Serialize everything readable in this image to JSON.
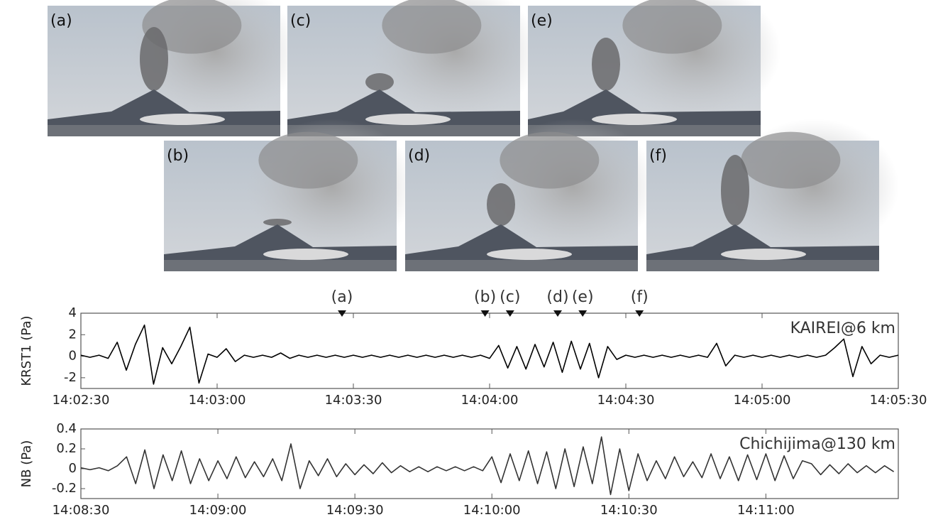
{
  "photos": [
    {
      "label": "(a)"
    },
    {
      "label": "(c)"
    },
    {
      "label": "(e)"
    },
    {
      "label": "(b)"
    },
    {
      "label": "(d)"
    },
    {
      "label": "(f)"
    }
  ],
  "chart_data": [
    {
      "type": "line",
      "ylabel": "KRST1 (Pa)",
      "annotation": "KAIREI@6 km",
      "color": "#000000",
      "xlim": [
        50550,
        50730
      ],
      "ylim": [
        -3,
        4
      ],
      "xticks": [
        {
          "value": 50550,
          "label": "14:02:30"
        },
        {
          "value": 50580,
          "label": "14:03:00"
        },
        {
          "value": 50610,
          "label": "14:03:30"
        },
        {
          "value": 50640,
          "label": "14:04:00"
        },
        {
          "value": 50670,
          "label": "14:04:30"
        },
        {
          "value": 50700,
          "label": "14:05:00"
        },
        {
          "value": 50730,
          "label": "14:05:30"
        }
      ],
      "yticks": [
        -2,
        0,
        2,
        4
      ],
      "events": [
        {
          "label": "(a)",
          "x": 50607.5
        },
        {
          "label": "(b)",
          "x": 50639
        },
        {
          "label": "(c)",
          "x": 50644.5
        },
        {
          "label": "(d)",
          "x": 50655
        },
        {
          "label": "(e)",
          "x": 50660.5
        },
        {
          "label": "(f)",
          "x": 50673
        }
      ],
      "x": [
        50550,
        50552,
        50554,
        50556,
        50558,
        50560,
        50562,
        50564,
        50566,
        50568,
        50570,
        50572,
        50574,
        50576,
        50578,
        50580,
        50582,
        50584,
        50586,
        50588,
        50590,
        50592,
        50594,
        50596,
        50598,
        50600,
        50602,
        50604,
        50606,
        50608,
        50610,
        50612,
        50614,
        50616,
        50618,
        50620,
        50622,
        50624,
        50626,
        50628,
        50630,
        50632,
        50634,
        50636,
        50638,
        50640,
        50642,
        50644,
        50646,
        50648,
        50650,
        50652,
        50654,
        50656,
        50658,
        50660,
        50662,
        50664,
        50666,
        50668,
        50670,
        50672,
        50674,
        50676,
        50678,
        50680,
        50682,
        50684,
        50686,
        50688,
        50690,
        50692,
        50694,
        50696,
        50698,
        50700,
        50702,
        50704,
        50706,
        50708,
        50710,
        50712,
        50714,
        50716,
        50718,
        50720,
        50722,
        50724,
        50726,
        50728,
        50730
      ],
      "values": [
        0.1,
        -0.1,
        0.1,
        -0.2,
        1.3,
        -1.3,
        1.1,
        2.9,
        -2.6,
        0.8,
        -0.7,
        0.9,
        2.7,
        -2.5,
        0.2,
        -0.1,
        0.7,
        -0.5,
        0.1,
        -0.1,
        0.1,
        -0.1,
        0.3,
        -0.2,
        0.1,
        -0.1,
        0.1,
        -0.1,
        0.1,
        -0.1,
        0.1,
        -0.1,
        0.1,
        -0.1,
        0.1,
        -0.1,
        0.1,
        -0.1,
        0.1,
        -0.1,
        0.1,
        -0.1,
        0.1,
        -0.1,
        0.1,
        -0.2,
        1.0,
        -1.1,
        0.9,
        -1.2,
        1.1,
        -1.0,
        1.3,
        -1.5,
        1.4,
        -1.2,
        1.2,
        -2.0,
        0.9,
        -0.3,
        0.1,
        -0.1,
        0.1,
        -0.1,
        0.1,
        -0.1,
        0.1,
        -0.1,
        0.1,
        -0.1,
        1.2,
        -0.9,
        0.1,
        -0.1,
        0.1,
        -0.1,
        0.1,
        -0.1,
        0.1,
        -0.1,
        0.1,
        -0.1,
        0.1,
        0.8,
        1.6,
        -1.9,
        0.9,
        -0.7,
        0.1,
        -0.1,
        0.1
      ]
    },
    {
      "type": "line",
      "ylabel": "NB (Pa)",
      "annotation": "Chichijima@130 km",
      "color": "#333333",
      "xlim": [
        50910,
        51089
      ],
      "ylim": [
        -0.3,
        0.4
      ],
      "xticks": [
        {
          "value": 50910,
          "label": "14:08:30"
        },
        {
          "value": 50940,
          "label": "14:09:00"
        },
        {
          "value": 50970,
          "label": "14:09:30"
        },
        {
          "value": 51000,
          "label": "14:10:00"
        },
        {
          "value": 51030,
          "label": "14:10:30"
        },
        {
          "value": 51060,
          "label": "14:11:00"
        }
      ],
      "yticks": [
        -0.2,
        0,
        0.2,
        0.4
      ],
      "x": [
        50910,
        50912,
        50914,
        50916,
        50918,
        50920,
        50922,
        50924,
        50926,
        50928,
        50930,
        50932,
        50934,
        50936,
        50938,
        50940,
        50942,
        50944,
        50946,
        50948,
        50950,
        50952,
        50954,
        50956,
        50958,
        50960,
        50962,
        50964,
        50966,
        50968,
        50970,
        50972,
        50974,
        50976,
        50978,
        50980,
        50982,
        50984,
        50986,
        50988,
        50990,
        50992,
        50994,
        50996,
        50998,
        51000,
        51002,
        51004,
        51006,
        51008,
        51010,
        51012,
        51014,
        51016,
        51018,
        51020,
        51022,
        51024,
        51026,
        51028,
        51030,
        51032,
        51034,
        51036,
        51038,
        51040,
        51042,
        51044,
        51046,
        51048,
        51050,
        51052,
        51054,
        51056,
        51058,
        51060,
        51062,
        51064,
        51066,
        51068,
        51070,
        51072,
        51074,
        51076,
        51078,
        51080,
        51082,
        51084,
        51086,
        51088
      ],
      "values": [
        0.01,
        -0.01,
        0.01,
        -0.02,
        0.03,
        0.12,
        -0.15,
        0.19,
        -0.2,
        0.14,
        -0.12,
        0.18,
        -0.15,
        0.1,
        -0.12,
        0.08,
        -0.1,
        0.12,
        -0.09,
        0.07,
        -0.08,
        0.1,
        -0.12,
        0.25,
        -0.2,
        0.08,
        -0.07,
        0.1,
        -0.08,
        0.05,
        -0.06,
        0.04,
        -0.05,
        0.06,
        -0.04,
        0.03,
        -0.03,
        0.02,
        -0.03,
        0.02,
        -0.02,
        0.02,
        -0.02,
        0.02,
        -0.02,
        0.12,
        -0.14,
        0.15,
        -0.12,
        0.18,
        -0.15,
        0.17,
        -0.2,
        0.2,
        -0.18,
        0.22,
        -0.15,
        0.32,
        -0.26,
        0.2,
        -0.22,
        0.15,
        -0.12,
        0.08,
        -0.1,
        0.12,
        -0.08,
        0.07,
        -0.09,
        0.15,
        -0.1,
        0.12,
        -0.12,
        0.14,
        -0.11,
        0.15,
        -0.12,
        0.13,
        -0.1,
        0.08,
        0.05,
        -0.06,
        0.04,
        -0.05,
        0.05,
        -0.04,
        0.03,
        -0.04,
        0.03,
        -0.03
      ]
    }
  ]
}
